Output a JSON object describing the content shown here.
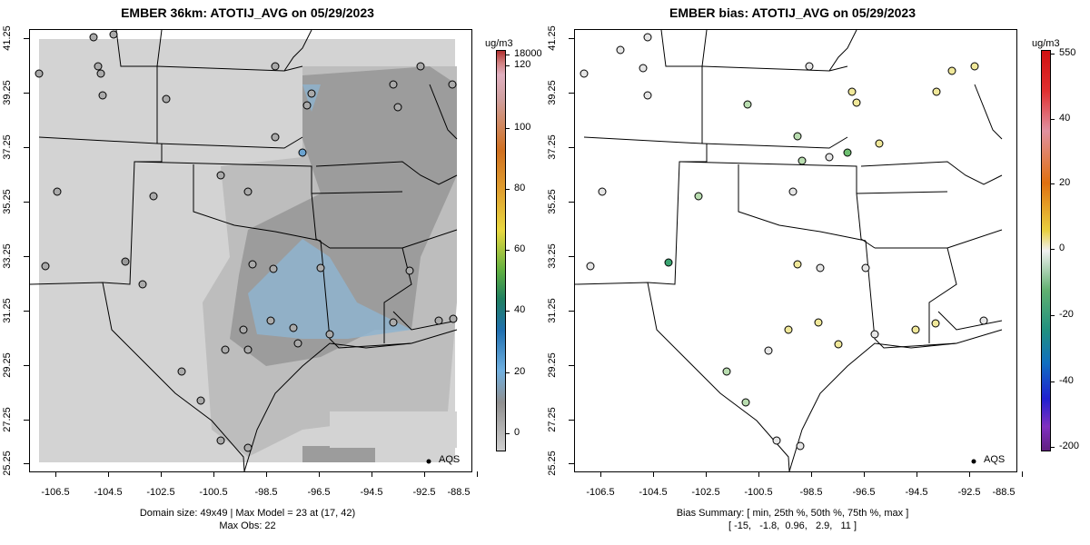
{
  "left_panel": {
    "title": "EMBER 36km: ATOTIJ_AVG on 05/29/2023",
    "footer_line1": "Domain size: 49x49 | Max Model = 23 at (17, 42)",
    "footer_line2": "Max Obs: 22",
    "legend_label": "AQS",
    "colorbar_unit": "ug/m3",
    "colorbar_labels": [
      "18000",
      "120",
      "100",
      "80",
      "60",
      "40",
      "20",
      "0"
    ]
  },
  "right_panel": {
    "title": "EMBER bias: ATOTIJ_AVG on 05/29/2023",
    "footer_line1": "Bias Summary: [ min, 25th %, 50th %, 75th %, max ]",
    "footer_line2": "[ -15,   -1.8,  0.96,   2.9,   11 ]",
    "legend_label": "AQS",
    "colorbar_unit": "ug/m3",
    "colorbar_labels": [
      "550",
      "40",
      "20",
      "0",
      "-20",
      "-40",
      "-200"
    ]
  },
  "axes": {
    "y_ticks": [
      "41.25",
      "39.25",
      "37.25",
      "35.25",
      "33.25",
      "31.25",
      "29.25",
      "27.25",
      "25.25"
    ],
    "x_ticks": [
      "-106.5",
      "-104.5",
      "-102.5",
      "-100.5",
      "-98.5",
      "-96.5",
      "-94.5",
      "-92.5",
      "-90.5",
      "-88.5"
    ]
  },
  "colors": {
    "model_light": "#d3d3d3",
    "model_mid": "#bdbdbd",
    "model_dark": "#9c9c9c",
    "model_blue": "#8fb4cf",
    "bias_neutral": "#e6e6e6",
    "bias_pos": "#f0e89a",
    "bias_neg": "#b9ddb0"
  }
}
